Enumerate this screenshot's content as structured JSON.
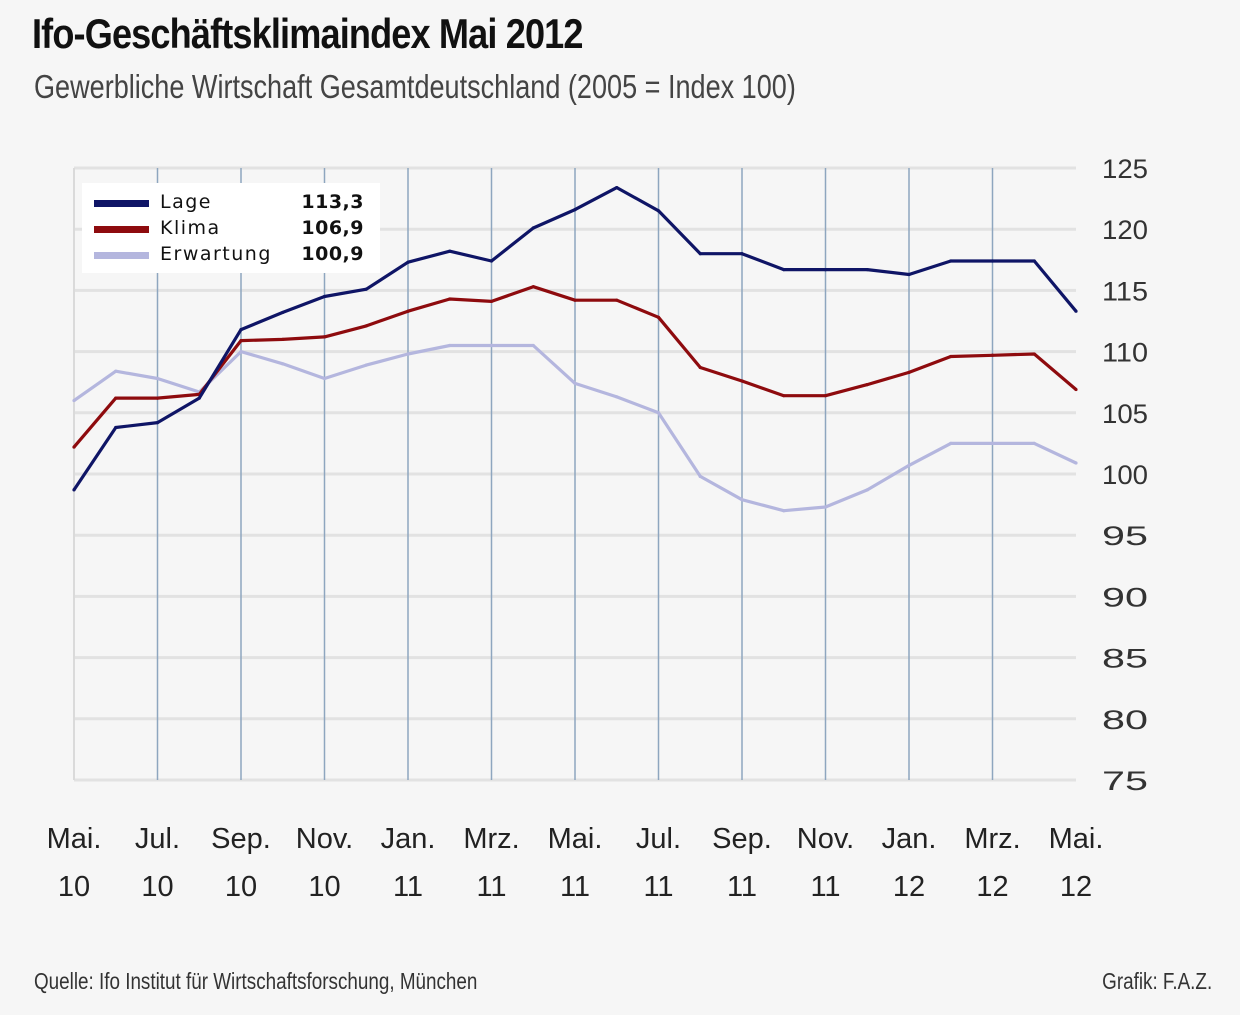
{
  "title": "Ifo-Geschäftsklimaindex Mai 2012",
  "subtitle": "Gewerbliche Wirtschaft Gesamtdeutschland (2005 = Index 100)",
  "source": "Quelle: Ifo Institut für Wirtschaftsforschung, München",
  "credit": "Grafik: F.A.Z.",
  "chart_data": {
    "type": "line",
    "title": "Ifo-Geschäftsklimaindex Mai 2012",
    "subtitle": "Gewerbliche Wirtschaft Gesamtdeutschland (2005 = Index 100)",
    "x": [
      "2010-05",
      "2010-06",
      "2010-07",
      "2010-08",
      "2010-09",
      "2010-10",
      "2010-11",
      "2010-12",
      "2011-01",
      "2011-02",
      "2011-03",
      "2011-04",
      "2011-05",
      "2011-06",
      "2011-07",
      "2011-08",
      "2011-09",
      "2011-10",
      "2011-11",
      "2011-12",
      "2012-01",
      "2012-02",
      "2012-03",
      "2012-04",
      "2012-05"
    ],
    "x_ticks": [
      {
        "month": "Mai.",
        "year": "10"
      },
      {
        "month": "Jul.",
        "year": "10"
      },
      {
        "month": "Sep.",
        "year": "10"
      },
      {
        "month": "Nov.",
        "year": "10"
      },
      {
        "month": "Jan.",
        "year": "11"
      },
      {
        "month": "Mrz.",
        "year": "11"
      },
      {
        "month": "Mai.",
        "year": "11"
      },
      {
        "month": "Jul.",
        "year": "11"
      },
      {
        "month": "Sep.",
        "year": "11"
      },
      {
        "month": "Nov.",
        "year": "11"
      },
      {
        "month": "Jan.",
        "year": "12"
      },
      {
        "month": "Mrz.",
        "year": "12"
      },
      {
        "month": "Mai.",
        "year": "12"
      }
    ],
    "y_ticks": [
      "125",
      "120",
      "115",
      "110",
      "105",
      "100",
      "95",
      "90",
      "85",
      "80",
      "75"
    ],
    "ylim": [
      75,
      125
    ],
    "y_axis_side": "right",
    "grid": true,
    "legend_placement": "top-left",
    "series": [
      {
        "name": "Lage",
        "latest": "113,3",
        "color": "#0f1566",
        "values": [
          98.7,
          103.8,
          104.2,
          106.2,
          111.8,
          113.2,
          114.5,
          115.1,
          117.3,
          118.2,
          117.4,
          120.1,
          121.6,
          123.4,
          121.5,
          118.0,
          118.0,
          116.7,
          116.7,
          116.7,
          116.3,
          117.4,
          117.4,
          117.4,
          113.3
        ]
      },
      {
        "name": "Klima",
        "latest": "106,9",
        "color": "#8e0b0e",
        "values": [
          102.2,
          106.2,
          106.2,
          106.5,
          110.9,
          111.0,
          111.2,
          112.1,
          113.3,
          114.3,
          114.1,
          115.3,
          114.2,
          114.2,
          112.8,
          108.7,
          107.6,
          106.4,
          106.4,
          107.3,
          108.3,
          109.6,
          109.7,
          109.8,
          106.9
        ]
      },
      {
        "name": "Erwartung",
        "latest": "100,9",
        "color": "#b4b6de",
        "values": [
          106.0,
          108.4,
          107.8,
          106.7,
          110.0,
          109.0,
          107.8,
          108.9,
          109.8,
          110.5,
          110.5,
          110.5,
          107.4,
          106.3,
          105.0,
          99.8,
          97.9,
          97.0,
          97.3,
          98.7,
          100.7,
          102.5,
          102.5,
          102.5,
          100.9
        ]
      }
    ]
  }
}
